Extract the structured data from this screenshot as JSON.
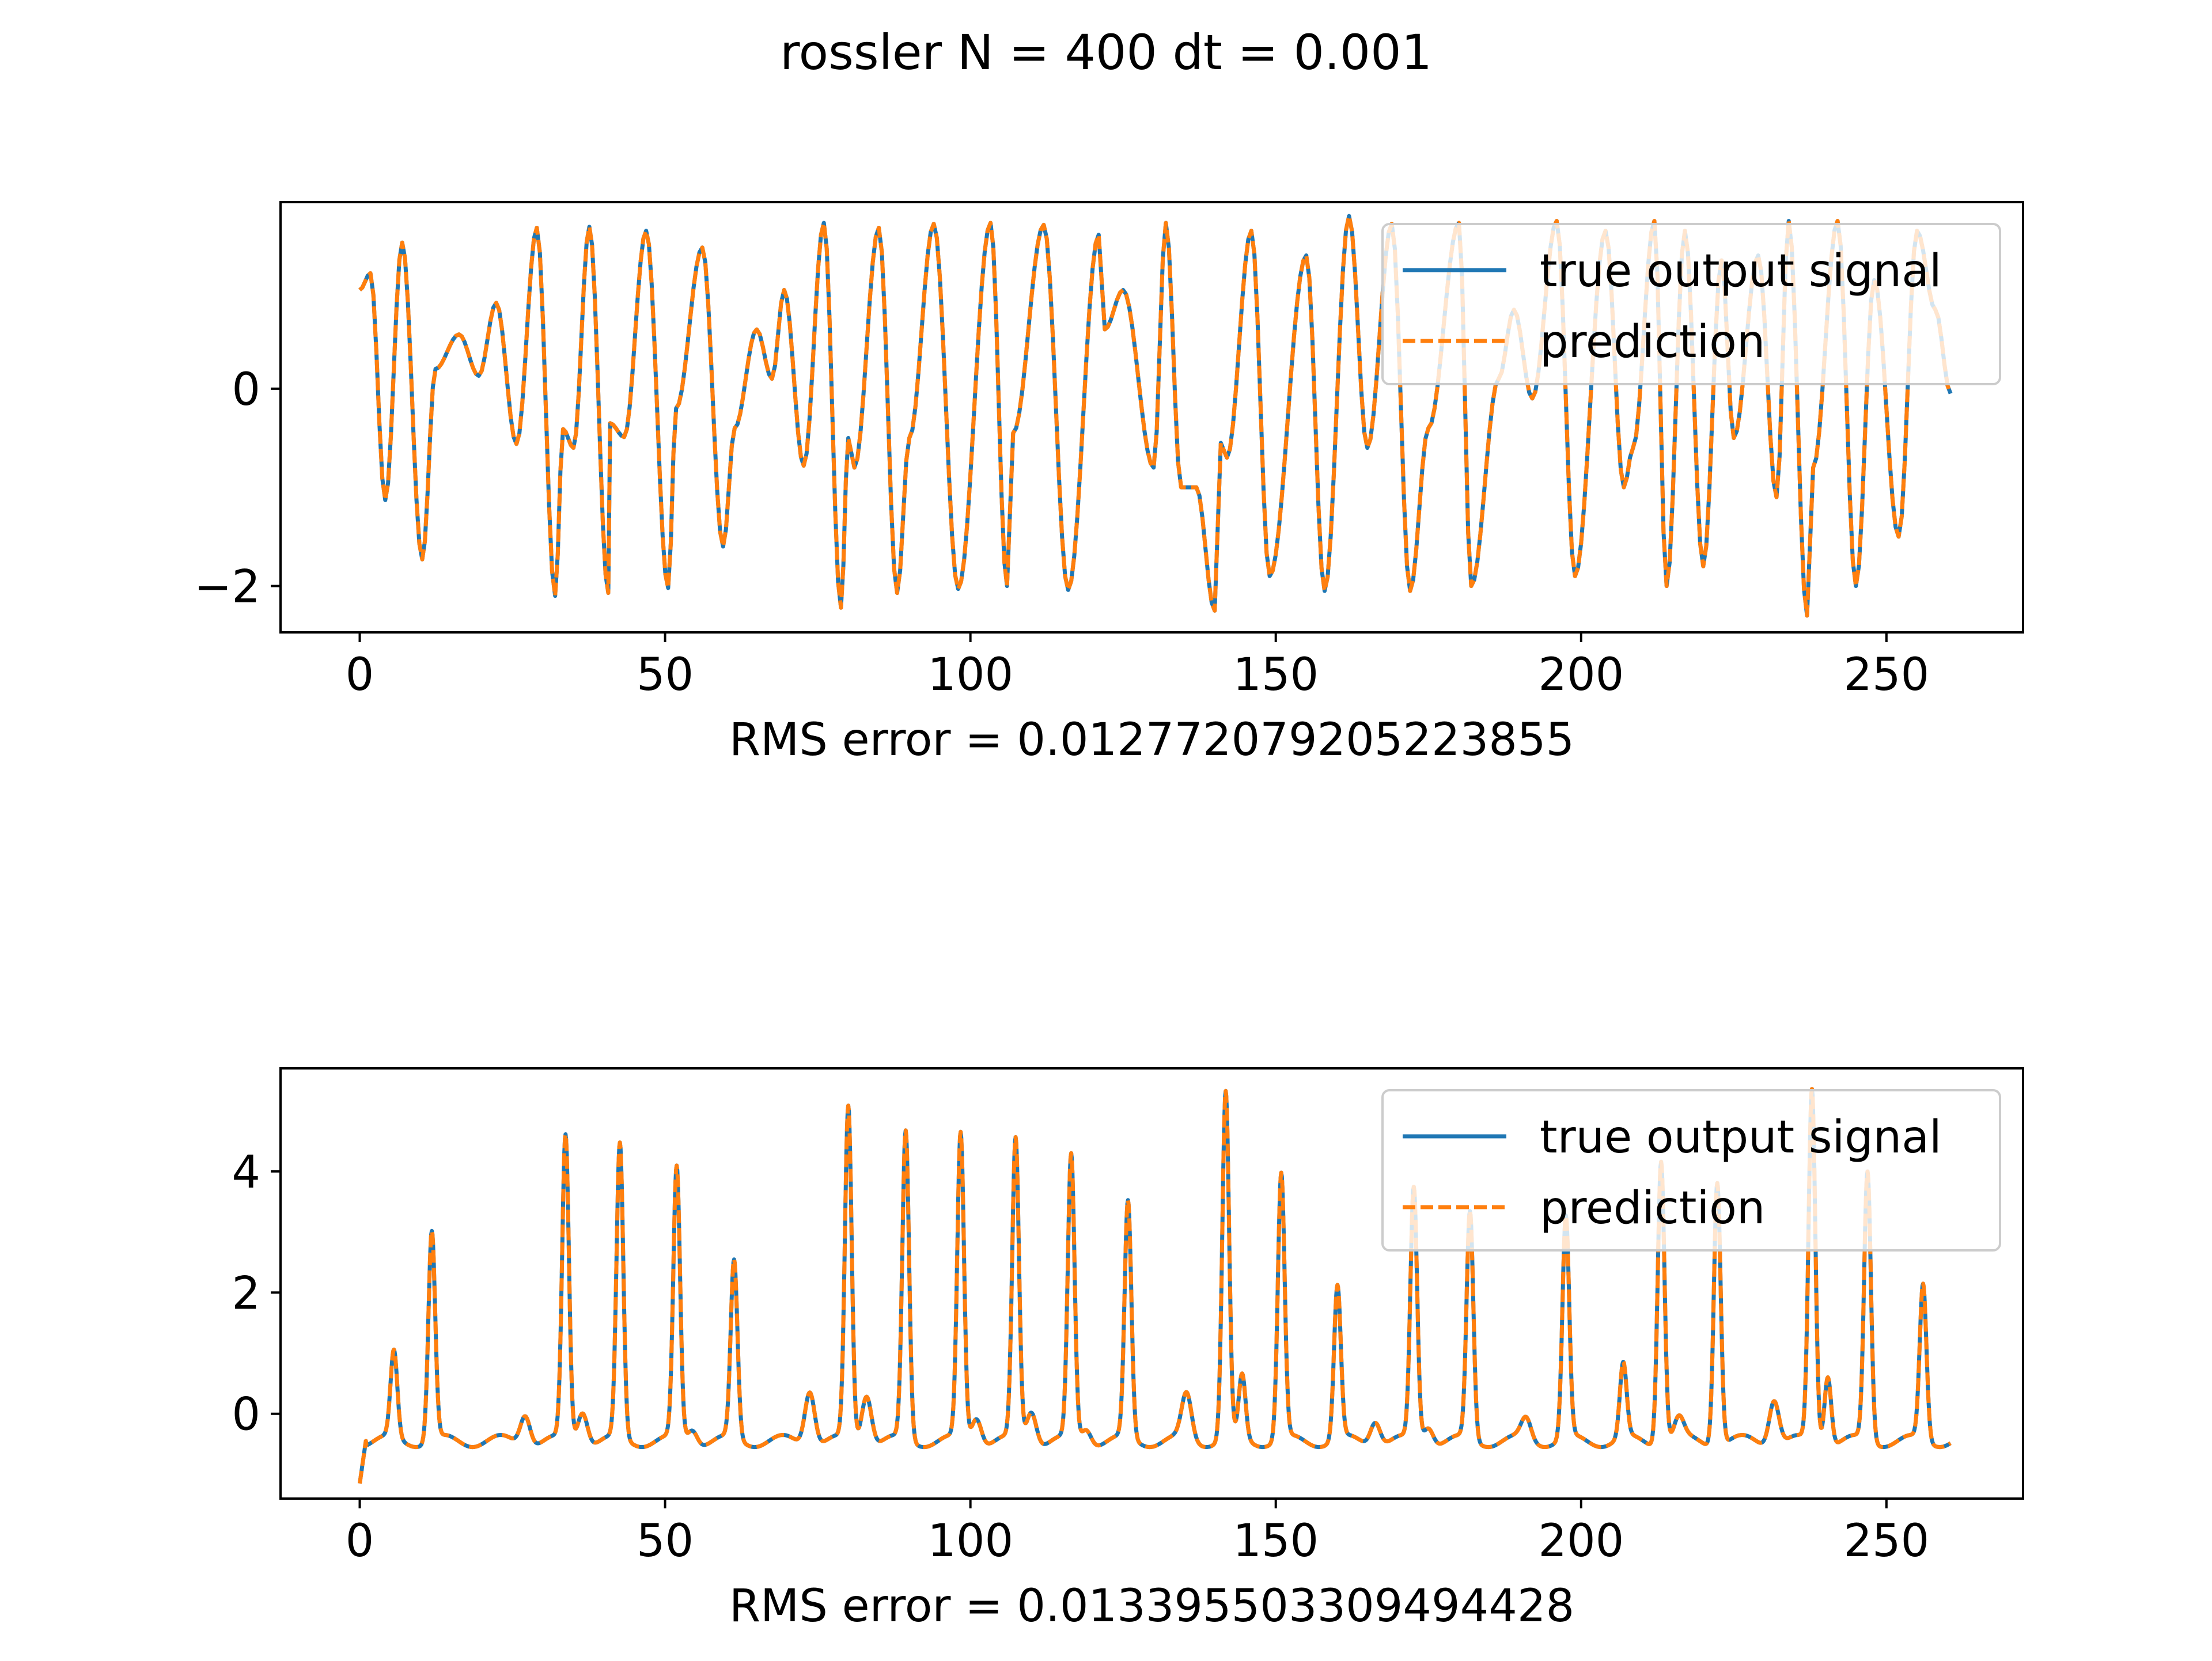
{
  "figure": {
    "title": "rossler N = 400 dt = 0.001"
  },
  "colors": {
    "true_signal": "#1f77b4",
    "prediction": "#ff7f0e",
    "axes": "#000000",
    "legend_border": "#cccccc"
  },
  "chart_data": [
    {
      "type": "line",
      "title": "",
      "xlabel": "RMS error = 0.012772079205223855",
      "ylabel": "",
      "xlim": [
        -12.97,
        272.37
      ],
      "ylim": [
        -2.47,
        1.89
      ],
      "xticks": [
        0,
        50,
        100,
        150,
        200,
        250
      ],
      "yticks": [
        -2,
        0
      ],
      "ytick_labels": [
        "−2",
        "0"
      ],
      "legend": {
        "placement": "upper right",
        "entries": [
          "true output signal",
          "prediction"
        ]
      },
      "grid": false,
      "series": [
        {
          "name": "true output signal",
          "style": "solid",
          "x": [
            0,
            1.75,
            4.18,
            6.95,
            10.23,
            12.41,
            16.25,
            19.49,
            22.35,
            25.67,
            29.0,
            32.0,
            33.3,
            35.0,
            37.6,
            40.7,
            41.0,
            43.3,
            46.9,
            50.5,
            51.8,
            56.1,
            59.5,
            61.4,
            65.0,
            67.5,
            69.5,
            72.7,
            76.0,
            78.8,
            80.0,
            81.0,
            85.0,
            88.0,
            90.0,
            94.0,
            98.0,
            103.3,
            106.0,
            107.0,
            112.0,
            116.0,
            121.0,
            122.0,
            125.0,
            130.0,
            132.0,
            134.5,
            137.0,
            140.0,
            141.0,
            142.0,
            146.0,
            149.0,
            155.0,
            158.0,
            162.0,
            165.0,
            169.0,
            172.0,
            175.0,
            180.0,
            182.0,
            186.5,
            189.0,
            192.0,
            196.0,
            199.0,
            204.0,
            207.0,
            208.5,
            212.0,
            214.0,
            217.0,
            220.0,
            223.0,
            225.0,
            229.0,
            232.0,
            234.0,
            237.0,
            238.0,
            242.0,
            245.0,
            248.0,
            252.0,
            255.0,
            258.0,
            260.5
          ],
          "y": [
            1.0,
            1.17,
            -1.13,
            1.48,
            -1.73,
            0.2,
            0.55,
            0.13,
            0.87,
            -0.56,
            1.63,
            -2.1,
            -0.41,
            -0.6,
            1.64,
            -2.07,
            -0.35,
            -0.49,
            1.6,
            -2.02,
            -0.2,
            1.43,
            -1.6,
            -0.4,
            0.6,
            0.1,
            1.0,
            -0.78,
            1.68,
            -2.22,
            -0.5,
            -0.8,
            1.63,
            -2.07,
            -0.5,
            1.67,
            -2.03,
            1.68,
            -2.0,
            -0.45,
            1.66,
            -2.04,
            1.56,
            0.6,
            1.0,
            -0.8,
            1.68,
            -1.0,
            -1.0,
            -2.25,
            -0.55,
            -0.7,
            1.6,
            -1.9,
            1.35,
            -2.05,
            1.75,
            -0.6,
            1.67,
            -2.05,
            -0.4,
            1.68,
            -2.0,
            0.1,
            0.8,
            -0.1,
            1.7,
            -1.9,
            1.6,
            -1.0,
            -0.6,
            1.7,
            -2.0,
            1.6,
            -1.8,
            1.3,
            -0.5,
            1.35,
            -1.1,
            1.7,
            -2.3,
            -0.8,
            1.7,
            -2.0,
            1.1,
            -1.5,
            1.6,
            0.8,
            -0.05
          ]
        },
        {
          "name": "prediction",
          "style": "dashed",
          "x": [
            0,
            1.75,
            4.18,
            6.95,
            10.23,
            12.41,
            16.25,
            19.49,
            22.35,
            25.67,
            29.0,
            32.0,
            33.3,
            35.0,
            37.6,
            40.7,
            41.0,
            43.3,
            46.9,
            50.5,
            51.8,
            56.1,
            59.5,
            61.4,
            65.0,
            67.5,
            69.5,
            72.7,
            76.0,
            78.8,
            80.0,
            81.0,
            85.0,
            88.0,
            90.0,
            94.0,
            98.0,
            103.3,
            106.0,
            107.0,
            112.0,
            116.0,
            121.0,
            122.0,
            125.0,
            130.0,
            132.0,
            134.5,
            137.0,
            140.0,
            141.0,
            142.0,
            146.0,
            149.0,
            155.0,
            158.0,
            162.0,
            165.0,
            169.0,
            172.0,
            175.0,
            180.0,
            182.0,
            186.5,
            189.0,
            192.0,
            196.0,
            199.0,
            204.0,
            207.0,
            208.5,
            212.0,
            214.0,
            217.0,
            220.0,
            223.0,
            225.0,
            229.0,
            232.0,
            234.0,
            237.0,
            238.0,
            242.0,
            245.0,
            248.0,
            252.0,
            255.0,
            258.0,
            260.5
          ],
          "y": [
            1.0,
            1.17,
            -1.13,
            1.48,
            -1.73,
            0.2,
            0.55,
            0.13,
            0.87,
            -0.56,
            1.63,
            -2.1,
            -0.41,
            -0.6,
            1.64,
            -2.07,
            -0.35,
            -0.49,
            1.6,
            -2.02,
            -0.2,
            1.43,
            -1.6,
            -0.4,
            0.6,
            0.1,
            1.0,
            -0.78,
            1.68,
            -2.22,
            -0.5,
            -0.8,
            1.63,
            -2.07,
            -0.5,
            1.67,
            -2.03,
            1.68,
            -2.0,
            -0.45,
            1.66,
            -2.04,
            1.56,
            0.6,
            1.0,
            -0.8,
            1.68,
            -1.0,
            -1.0,
            -2.25,
            -0.55,
            -0.7,
            1.6,
            -1.9,
            1.35,
            -2.05,
            1.75,
            -0.6,
            1.67,
            -2.05,
            -0.4,
            1.68,
            -2.0,
            0.1,
            0.8,
            -0.1,
            1.7,
            -1.9,
            1.6,
            -1.0,
            -0.6,
            1.7,
            -2.0,
            1.6,
            -1.8,
            1.3,
            -0.5,
            1.35,
            -1.1,
            1.7,
            -2.3,
            -0.8,
            1.7,
            -2.0,
            1.1,
            -1.5,
            1.6,
            0.8,
            -0.05
          ]
        }
      ]
    },
    {
      "type": "line",
      "title": "",
      "xlabel": "RMS error = 0.013395503309494428",
      "ylabel": "",
      "xlim": [
        -12.97,
        272.37
      ],
      "ylim": [
        -1.4,
        5.7
      ],
      "xticks": [
        0,
        50,
        100,
        150,
        200,
        250
      ],
      "yticks": [
        0,
        2,
        4
      ],
      "ytick_labels": [
        "0",
        "2",
        "4"
      ],
      "legend": {
        "placement": "upper right",
        "entries": [
          "true output signal",
          "prediction"
        ]
      },
      "grid": false,
      "baseline": -0.45,
      "start_value": -1.15,
      "peaks": [
        {
          "x": 5.6,
          "y": 0.98
        },
        {
          "x": 11.8,
          "y": 3.0
        },
        {
          "x": 27.1,
          "y": 0.05
        },
        {
          "x": 33.7,
          "y": 4.55
        },
        {
          "x": 36.5,
          "y": 0.1
        },
        {
          "x": 42.6,
          "y": 4.4
        },
        {
          "x": 51.9,
          "y": 4.02
        },
        {
          "x": 54.5,
          "y": -0.2
        },
        {
          "x": 61.3,
          "y": 2.48
        },
        {
          "x": 73.7,
          "y": 0.45
        },
        {
          "x": 80.0,
          "y": 5.03
        },
        {
          "x": 83.0,
          "y": 0.38
        },
        {
          "x": 89.4,
          "y": 4.63
        },
        {
          "x": 98.4,
          "y": 4.59
        },
        {
          "x": 101.0,
          "y": 0.0
        },
        {
          "x": 107.4,
          "y": 4.49
        },
        {
          "x": 110.0,
          "y": 0.1
        },
        {
          "x": 116.5,
          "y": 4.22
        },
        {
          "x": 119.0,
          "y": -0.2
        },
        {
          "x": 125.8,
          "y": 3.45
        },
        {
          "x": 135.4,
          "y": 0.3
        },
        {
          "x": 141.8,
          "y": 5.27
        },
        {
          "x": 144.5,
          "y": 0.6
        },
        {
          "x": 150.9,
          "y": 3.93
        },
        {
          "x": 160.1,
          "y": 2.08
        },
        {
          "x": 166.3,
          "y": -0.05
        },
        {
          "x": 172.6,
          "y": 3.7
        },
        {
          "x": 175.0,
          "y": -0.15
        },
        {
          "x": 181.8,
          "y": 3.3
        },
        {
          "x": 191.0,
          "y": -0.1
        },
        {
          "x": 197.5,
          "y": 3.2
        },
        {
          "x": 206.9,
          "y": 0.78
        },
        {
          "x": 213.1,
          "y": 4.25
        },
        {
          "x": 216.0,
          "y": -0.1
        },
        {
          "x": 222.3,
          "y": 3.9
        },
        {
          "x": 231.6,
          "y": 0.3
        },
        {
          "x": 237.8,
          "y": 5.35
        },
        {
          "x": 240.4,
          "y": 0.7
        },
        {
          "x": 246.9,
          "y": 3.98
        },
        {
          "x": 256.0,
          "y": 2.12
        }
      ],
      "x_end": 260.5
    }
  ]
}
